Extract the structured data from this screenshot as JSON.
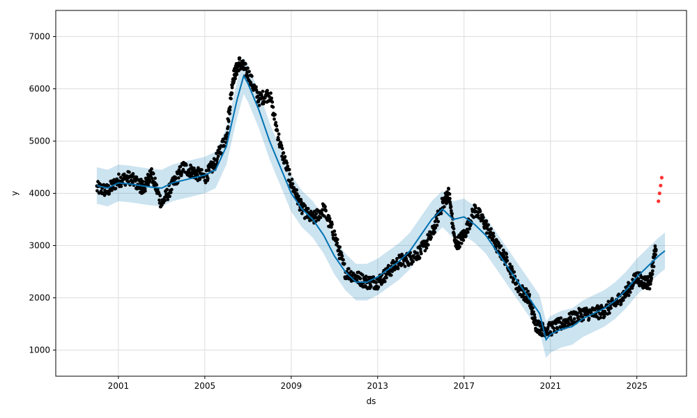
{
  "chart_data": {
    "type": "scatter",
    "title": "",
    "xlabel": "ds",
    "ylabel": "y",
    "x_ticks": [
      "2001",
      "2005",
      "2009",
      "2013",
      "2017",
      "2021",
      "2025"
    ],
    "y_ticks": [
      "1000",
      "2000",
      "3000",
      "4000",
      "5000",
      "6000",
      "7000"
    ],
    "xlim": [
      1998.1,
      2027.3
    ],
    "ylim": [
      500,
      7500
    ],
    "grid": true,
    "colors": {
      "observed": "#000000",
      "recent_observed": "#ff0000",
      "forecast_line": "#0072B2",
      "uncertainty_band": "#0072B2"
    },
    "forecast": {
      "x": [
        2000.0,
        2000.5,
        2001.0,
        2001.5,
        2002.0,
        2002.5,
        2003.0,
        2003.5,
        2004.0,
        2004.5,
        2005.0,
        2005.5,
        2006.0,
        2006.5,
        2006.8,
        2007.0,
        2007.5,
        2008.0,
        2008.5,
        2009.0,
        2009.5,
        2010.0,
        2010.5,
        2011.0,
        2011.5,
        2012.0,
        2012.5,
        2013.0,
        2013.5,
        2014.0,
        2014.5,
        2015.0,
        2015.5,
        2016.0,
        2016.5,
        2017.0,
        2017.5,
        2018.0,
        2018.5,
        2019.0,
        2019.5,
        2020.0,
        2020.5,
        2020.8,
        2021.0,
        2021.5,
        2022.0,
        2022.5,
        2023.0,
        2023.5,
        2024.0,
        2024.5,
        2025.0,
        2025.5,
        2026.0,
        2026.3
      ],
      "yhat": [
        4150,
        4100,
        4200,
        4180,
        4150,
        4120,
        4100,
        4200,
        4250,
        4300,
        4350,
        4450,
        4900,
        5800,
        6250,
        6100,
        5600,
        5000,
        4500,
        4000,
        3700,
        3500,
        3200,
        2800,
        2500,
        2300,
        2300,
        2400,
        2550,
        2700,
        2900,
        3200,
        3500,
        3700,
        3500,
        3550,
        3400,
        3200,
        2900,
        2600,
        2300,
        2000,
        1700,
        1200,
        1300,
        1400,
        1450,
        1600,
        1700,
        1800,
        1950,
        2150,
        2400,
        2600,
        2800,
        2900
      ],
      "band_halfwidth": 350
    },
    "observed": {
      "segments": [
        {
          "x": [
            2000.0,
            2000.5,
            2001.0,
            2001.5,
            2002.0,
            2002.2,
            2002.5,
            2003.0,
            2003.5,
            2004.0,
            2004.5,
            2005.0,
            2005.5,
            2006.0,
            2006.3,
            2006.6,
            2007.0,
            2007.5,
            2008.0,
            2008.5,
            2009.0,
            2009.5,
            2010.0,
            2010.5,
            2011.0,
            2011.5,
            2012.0,
            2012.5,
            2013.0,
            2013.5,
            2014.0,
            2014.5,
            2015.0,
            2015.5,
            2016.0,
            2016.3,
            2016.6,
            2017.0,
            2017.5,
            2018.0,
            2018.5,
            2019.0,
            2019.5,
            2020.0,
            2020.3,
            2020.6,
            2021.0,
            2021.5,
            2022.0,
            2022.5,
            2023.0,
            2023.5,
            2024.0,
            2024.5,
            2025.0,
            2025.3,
            2025.6,
            2025.9
          ],
          "y": [
            4100,
            4050,
            4250,
            4300,
            4150,
            4100,
            4400,
            3800,
            4150,
            4500,
            4400,
            4300,
            4600,
            5100,
            6200,
            6500,
            6300,
            5800,
            5900,
            4900,
            4200,
            3700,
            3500,
            3700,
            3200,
            2500,
            2400,
            2300,
            2300,
            2500,
            2700,
            2750,
            2900,
            3200,
            3800,
            4000,
            3000,
            3200,
            3700,
            3400,
            3000,
            2700,
            2200,
            2000,
            1500,
            1400,
            1400,
            1500,
            1600,
            1700,
            1700,
            1750,
            1900,
            2100,
            2400,
            2300,
            2300,
            3000
          ]
        }
      ],
      "recent": {
        "x": [
          2026.0,
          2026.05,
          2026.1,
          2026.15
        ],
        "y": [
          3850,
          4000,
          4150,
          4300
        ]
      }
    }
  }
}
